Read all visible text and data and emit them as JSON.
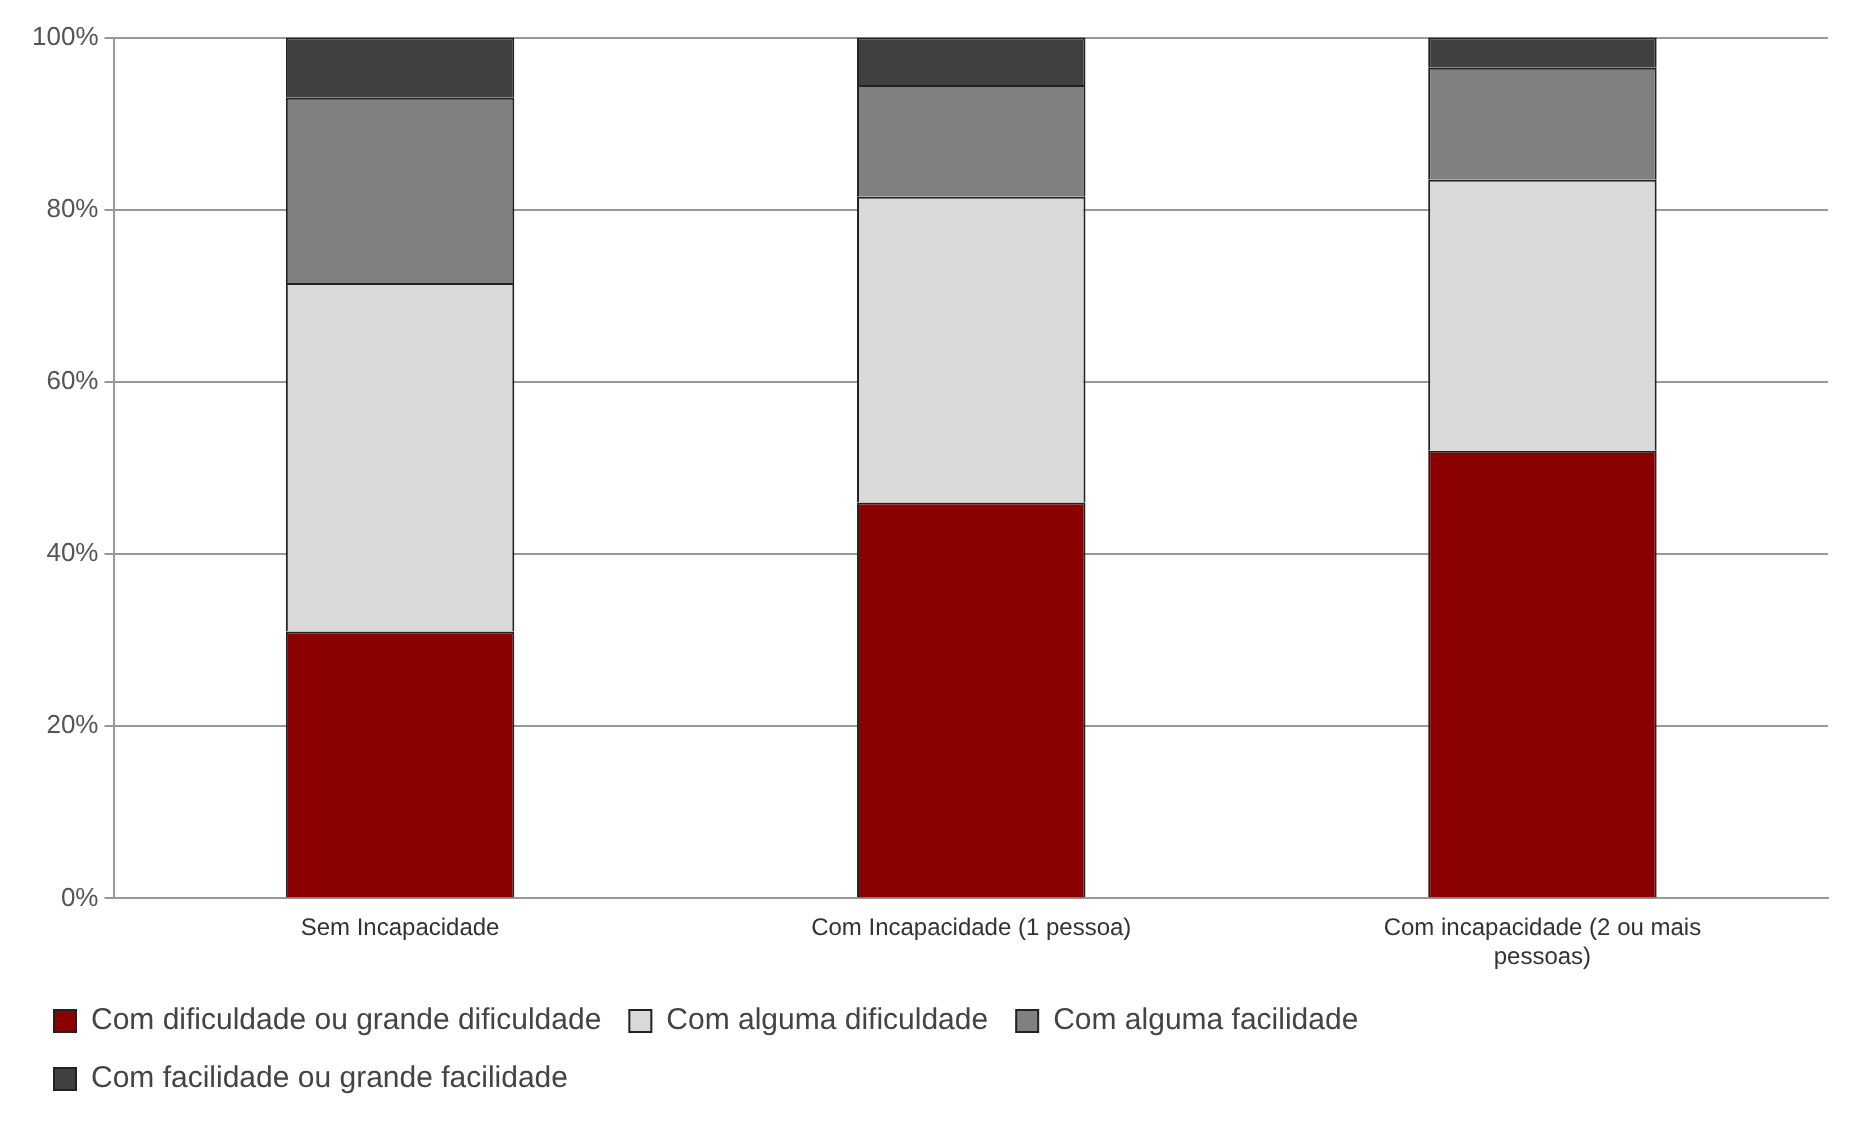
{
  "chart_data": {
    "type": "bar",
    "stacked": true,
    "categories": [
      "Sem Incapacidade",
      "Com Incapacidade (1 pessoa)",
      "Com incapacidade (2 ou mais pessoas)"
    ],
    "series": [
      {
        "name": "Com dificuldade ou grande dificuldade",
        "color": "#8b0000",
        "values": [
          31,
          46,
          52
        ]
      },
      {
        "name": "Com alguma dificuldade",
        "color": "#d9d9d9",
        "values": [
          40.5,
          35.5,
          31.5
        ]
      },
      {
        "name": "Com alguma facilidade",
        "color": "#808080",
        "values": [
          21.5,
          13,
          13
        ]
      },
      {
        "name": "Com facilidade ou grande facilidade",
        "color": "#404040",
        "values": [
          7,
          5.5,
          3.5
        ]
      }
    ],
    "ylim": [
      0,
      100
    ],
    "yticks": [
      {
        "value": 0,
        "label": "0%"
      },
      {
        "value": 20,
        "label": "20%"
      },
      {
        "value": 40,
        "label": "40%"
      },
      {
        "value": 60,
        "label": "60%"
      },
      {
        "value": 80,
        "label": "80%"
      },
      {
        "value": 100,
        "label": "100%"
      }
    ],
    "grid": "y",
    "legend": "bottom"
  }
}
